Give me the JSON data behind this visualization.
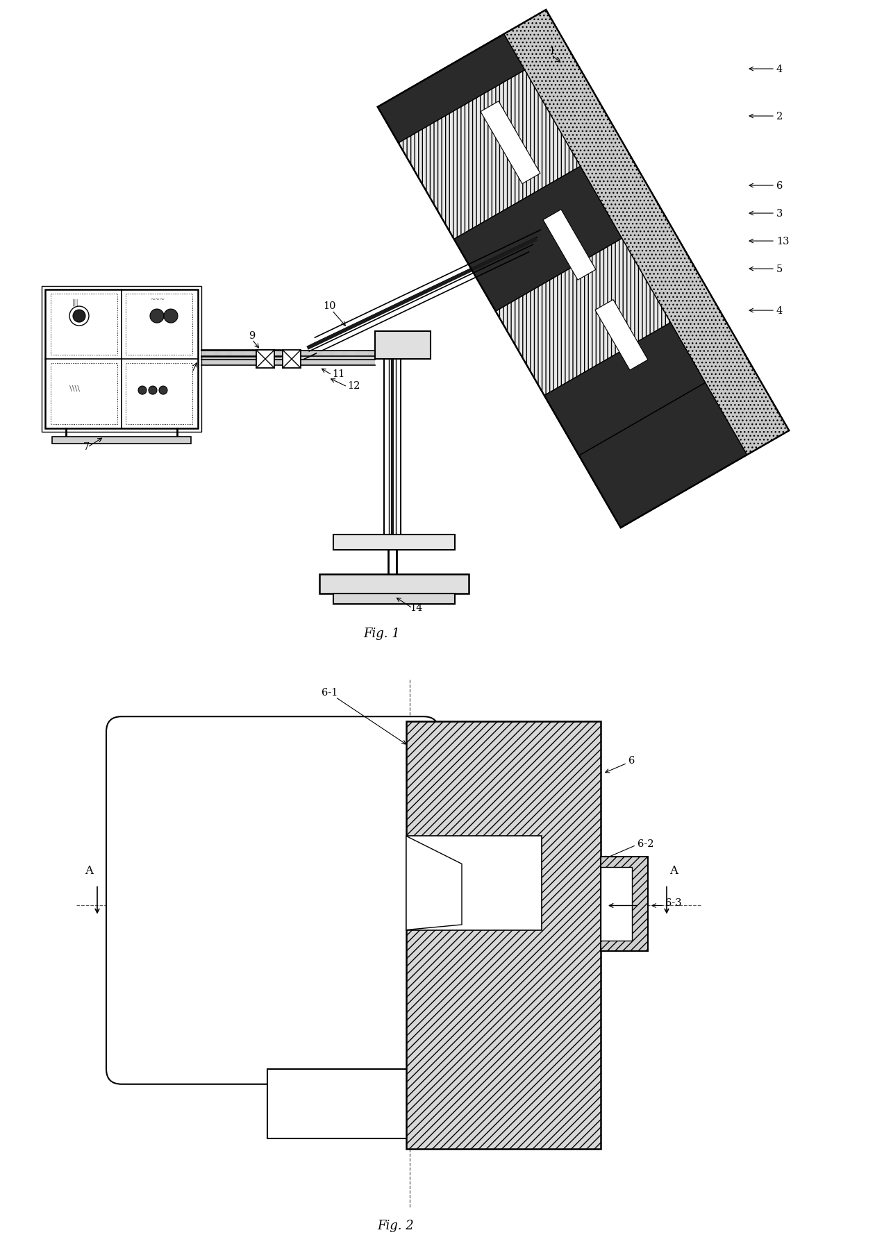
{
  "fig1_title": "Fig. 1",
  "fig2_title": "Fig. 2",
  "bg": "#ffffff",
  "lc": "#000000",
  "dark_coal": "#3a3a3a",
  "rock_fill": "#c8c8c8",
  "hatch_fill": "#d4d4d4"
}
